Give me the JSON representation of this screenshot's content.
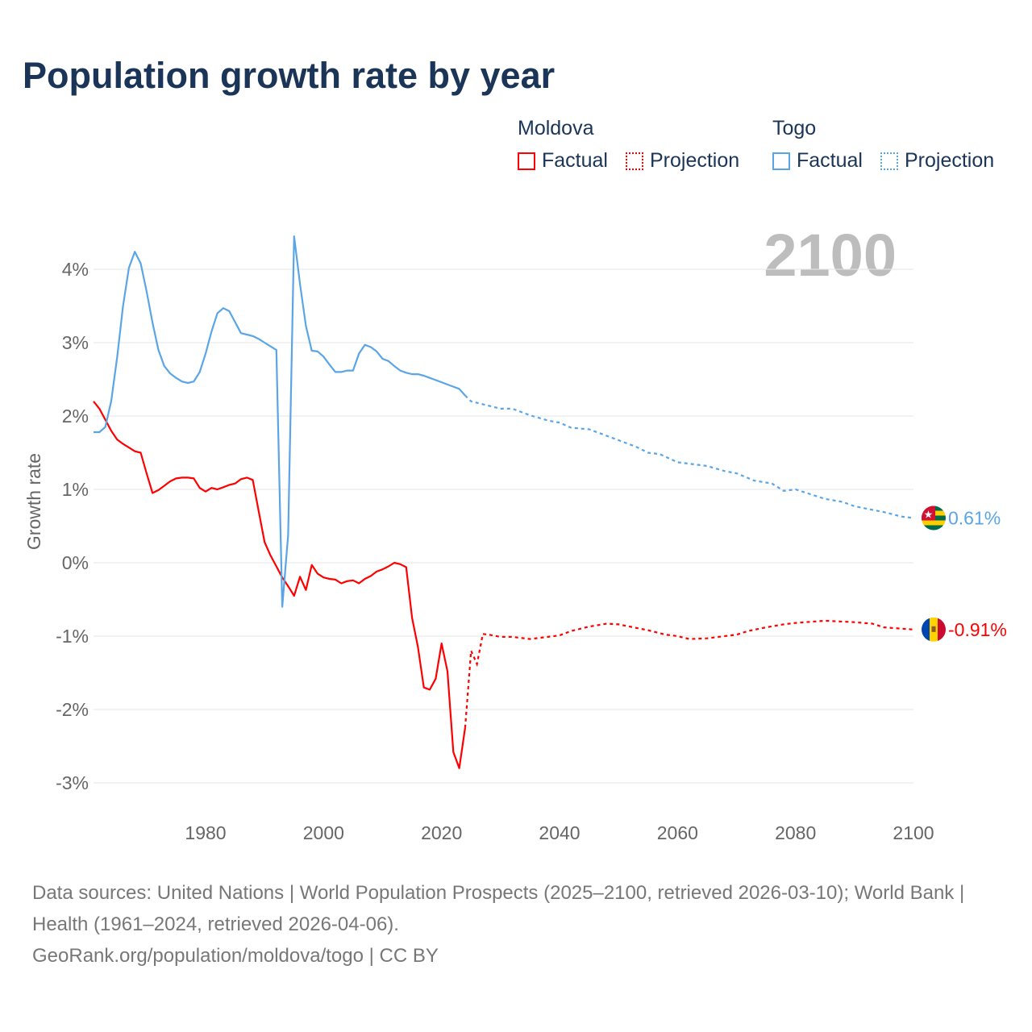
{
  "chart_data": {
    "type": "line",
    "title": "Population growth rate by year",
    "ylabel": "Growth rate",
    "xlabel": "",
    "xlim": [
      1961,
      2100
    ],
    "ylim": [
      -3.3,
      4.6
    ],
    "x_ticks": [
      1980,
      2000,
      2020,
      2040,
      2060,
      2080,
      2100
    ],
    "x_tick_labels": [
      "1980",
      "2000",
      "2020",
      "2040",
      "2060",
      "2080",
      "2100"
    ],
    "y_ticks": [
      4,
      3,
      2,
      1,
      0,
      -1,
      -2,
      -3
    ],
    "y_tick_labels": [
      "4%",
      "3%",
      "2%",
      "1%",
      "0%",
      "-1%",
      "-2%",
      "-3%"
    ],
    "grid": true,
    "year_watermark": "2100",
    "legend": {
      "placement": "top-right",
      "groups": [
        {
          "name": "Moldova",
          "factual": "Factual",
          "projection": "Projection"
        },
        {
          "name": "Togo",
          "factual": "Factual",
          "projection": "Projection"
        }
      ]
    },
    "series": [
      {
        "name": "Moldova",
        "color": "#ff0000",
        "end_label": "-0.91%",
        "factual": [
          [
            1961,
            2.2
          ],
          [
            1962,
            2.1
          ],
          [
            1963,
            1.95
          ],
          [
            1964,
            1.8
          ],
          [
            1965,
            1.68
          ],
          [
            1966,
            1.62
          ],
          [
            1967,
            1.57
          ],
          [
            1968,
            1.52
          ],
          [
            1969,
            1.5
          ],
          [
            1970,
            1.22
          ],
          [
            1971,
            0.95
          ],
          [
            1972,
            0.99
          ],
          [
            1973,
            1.05
          ],
          [
            1974,
            1.11
          ],
          [
            1975,
            1.15
          ],
          [
            1976,
            1.16
          ],
          [
            1977,
            1.16
          ],
          [
            1978,
            1.15
          ],
          [
            1979,
            1.02
          ],
          [
            1980,
            0.97
          ],
          [
            1981,
            1.02
          ],
          [
            1982,
            1.0
          ],
          [
            1983,
            1.03
          ],
          [
            1984,
            1.06
          ],
          [
            1985,
            1.08
          ],
          [
            1986,
            1.14
          ],
          [
            1987,
            1.16
          ],
          [
            1988,
            1.13
          ],
          [
            1989,
            0.7
          ],
          [
            1990,
            0.28
          ],
          [
            1991,
            0.1
          ],
          [
            1992,
            -0.05
          ],
          [
            1993,
            -0.2
          ],
          [
            1994,
            -0.32
          ],
          [
            1995,
            -0.45
          ],
          [
            1996,
            -0.19
          ],
          [
            1997,
            -0.37
          ],
          [
            1998,
            -0.03
          ],
          [
            1999,
            -0.15
          ],
          [
            2000,
            -0.2
          ],
          [
            2001,
            -0.22
          ],
          [
            2002,
            -0.23
          ],
          [
            2003,
            -0.28
          ],
          [
            2004,
            -0.25
          ],
          [
            2005,
            -0.24
          ],
          [
            2006,
            -0.28
          ],
          [
            2007,
            -0.22
          ],
          [
            2008,
            -0.18
          ],
          [
            2009,
            -0.12
          ],
          [
            2010,
            -0.09
          ],
          [
            2011,
            -0.05
          ],
          [
            2012,
            0.0
          ],
          [
            2013,
            -0.02
          ],
          [
            2014,
            -0.06
          ],
          [
            2015,
            -0.75
          ],
          [
            2016,
            -1.15
          ],
          [
            2017,
            -1.7
          ],
          [
            2018,
            -1.73
          ],
          [
            2019,
            -1.58
          ],
          [
            2020,
            -1.1
          ],
          [
            2021,
            -1.48
          ],
          [
            2022,
            -2.58
          ],
          [
            2023,
            -2.8
          ],
          [
            2024,
            -2.25
          ]
        ],
        "projection": [
          [
            2024,
            -2.25
          ],
          [
            2025,
            -1.2
          ],
          [
            2026,
            -1.38
          ],
          [
            2027,
            -0.97
          ],
          [
            2028,
            -0.98
          ],
          [
            2030,
            -1.01
          ],
          [
            2032,
            -1.01
          ],
          [
            2035,
            -1.04
          ],
          [
            2040,
            -0.99
          ],
          [
            2042,
            -0.93
          ],
          [
            2045,
            -0.87
          ],
          [
            2048,
            -0.83
          ],
          [
            2050,
            -0.84
          ],
          [
            2055,
            -0.92
          ],
          [
            2058,
            -0.98
          ],
          [
            2060,
            -1.0
          ],
          [
            2062,
            -1.04
          ],
          [
            2065,
            -1.03
          ],
          [
            2070,
            -0.98
          ],
          [
            2072,
            -0.93
          ],
          [
            2075,
            -0.88
          ],
          [
            2078,
            -0.84
          ],
          [
            2080,
            -0.82
          ],
          [
            2085,
            -0.79
          ],
          [
            2090,
            -0.81
          ],
          [
            2093,
            -0.83
          ],
          [
            2095,
            -0.88
          ],
          [
            2100,
            -0.91
          ]
        ]
      },
      {
        "name": "Togo",
        "color": "#5aa5e6",
        "end_label": "0.61%",
        "factual": [
          [
            1961,
            1.78
          ],
          [
            1962,
            1.78
          ],
          [
            1963,
            1.85
          ],
          [
            1964,
            2.2
          ],
          [
            1965,
            2.8
          ],
          [
            1966,
            3.5
          ],
          [
            1967,
            4.02
          ],
          [
            1968,
            4.24
          ],
          [
            1969,
            4.08
          ],
          [
            1970,
            3.7
          ],
          [
            1971,
            3.27
          ],
          [
            1972,
            2.9
          ],
          [
            1973,
            2.68
          ],
          [
            1974,
            2.58
          ],
          [
            1975,
            2.52
          ],
          [
            1976,
            2.47
          ],
          [
            1977,
            2.45
          ],
          [
            1978,
            2.47
          ],
          [
            1979,
            2.6
          ],
          [
            1980,
            2.85
          ],
          [
            1981,
            3.15
          ],
          [
            1982,
            3.4
          ],
          [
            1983,
            3.47
          ],
          [
            1984,
            3.43
          ],
          [
            1985,
            3.28
          ],
          [
            1986,
            3.13
          ],
          [
            1987,
            3.11
          ],
          [
            1988,
            3.09
          ],
          [
            1989,
            3.05
          ],
          [
            1990,
            3.0
          ],
          [
            1991,
            2.95
          ],
          [
            1992,
            2.9
          ],
          [
            1993,
            -0.6
          ],
          [
            1994,
            0.38
          ],
          [
            1995,
            4.45
          ],
          [
            1996,
            3.8
          ],
          [
            1997,
            3.23
          ],
          [
            1998,
            2.89
          ],
          [
            1999,
            2.88
          ],
          [
            2000,
            2.81
          ],
          [
            2001,
            2.7
          ],
          [
            2002,
            2.6
          ],
          [
            2003,
            2.6
          ],
          [
            2004,
            2.62
          ],
          [
            2005,
            2.62
          ],
          [
            2006,
            2.85
          ],
          [
            2007,
            2.97
          ],
          [
            2008,
            2.94
          ],
          [
            2009,
            2.88
          ],
          [
            2010,
            2.78
          ],
          [
            2011,
            2.75
          ],
          [
            2012,
            2.68
          ],
          [
            2013,
            2.62
          ],
          [
            2014,
            2.59
          ],
          [
            2015,
            2.57
          ],
          [
            2016,
            2.57
          ],
          [
            2017,
            2.55
          ],
          [
            2018,
            2.52
          ],
          [
            2019,
            2.49
          ],
          [
            2020,
            2.46
          ],
          [
            2021,
            2.43
          ],
          [
            2022,
            2.4
          ],
          [
            2023,
            2.37
          ],
          [
            2024,
            2.28
          ]
        ],
        "projection": [
          [
            2024,
            2.28
          ],
          [
            2025,
            2.2
          ],
          [
            2027,
            2.16
          ],
          [
            2030,
            2.1
          ],
          [
            2032,
            2.1
          ],
          [
            2035,
            2.01
          ],
          [
            2038,
            1.94
          ],
          [
            2040,
            1.91
          ],
          [
            2042,
            1.84
          ],
          [
            2045,
            1.82
          ],
          [
            2050,
            1.67
          ],
          [
            2053,
            1.58
          ],
          [
            2055,
            1.5
          ],
          [
            2057,
            1.48
          ],
          [
            2060,
            1.37
          ],
          [
            2065,
            1.32
          ],
          [
            2068,
            1.25
          ],
          [
            2070,
            1.22
          ],
          [
            2073,
            1.12
          ],
          [
            2076,
            1.08
          ],
          [
            2078,
            0.98
          ],
          [
            2080,
            1.0
          ],
          [
            2085,
            0.87
          ],
          [
            2088,
            0.83
          ],
          [
            2090,
            0.77
          ],
          [
            2095,
            0.69
          ],
          [
            2098,
            0.63
          ],
          [
            2100,
            0.61
          ]
        ]
      }
    ]
  },
  "source": {
    "line1": "Data sources: United Nations | World Population Prospects (2025–2100, retrieved 2026-03-10); World Bank | Health (1961–2024, retrieved 2026-04-06).",
    "line2": "GeoRank.org/population/moldova/togo | CC BY"
  }
}
